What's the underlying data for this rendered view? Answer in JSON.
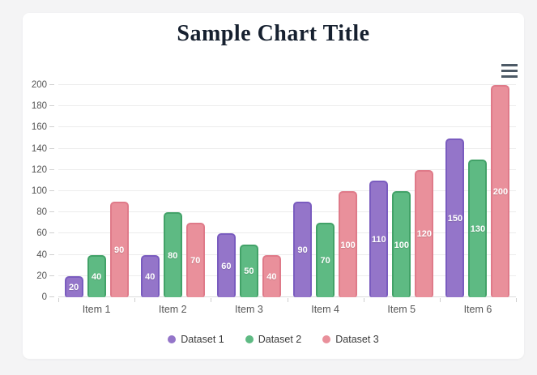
{
  "card": {
    "title": "Sample Chart Title"
  },
  "toolbar": {
    "menu_icon": "hamburger-menu-icon"
  },
  "chart_data": {
    "type": "bar",
    "title": "Sample Chart Title",
    "categories": [
      "Item 1",
      "Item 2",
      "Item 3",
      "Item 4",
      "Item 5",
      "Item 6"
    ],
    "series": [
      {
        "name": "Dataset 1",
        "color": "#9475c9",
        "border_color": "#7a5cbf",
        "values": [
          20,
          40,
          60,
          90,
          110,
          150
        ]
      },
      {
        "name": "Dataset 2",
        "color": "#5eba83",
        "border_color": "#42a268",
        "values": [
          40,
          80,
          50,
          70,
          100,
          130
        ]
      },
      {
        "name": "Dataset 3",
        "color": "#e9909b",
        "border_color": "#df7a89",
        "values": [
          90,
          70,
          40,
          100,
          120,
          200
        ]
      }
    ],
    "ylim": [
      0,
      200
    ],
    "yticks": [
      0,
      20,
      40,
      60,
      80,
      100,
      120,
      140,
      160,
      180,
      200
    ],
    "xlabel": "",
    "ylabel": "",
    "grid": true,
    "bar_labels": true,
    "legend_position": "bottom",
    "colors": {
      "grid": "#ececec",
      "axis_text": "#565656",
      "title_text": "#16202f",
      "bar_label_text": "#ffffff"
    }
  }
}
